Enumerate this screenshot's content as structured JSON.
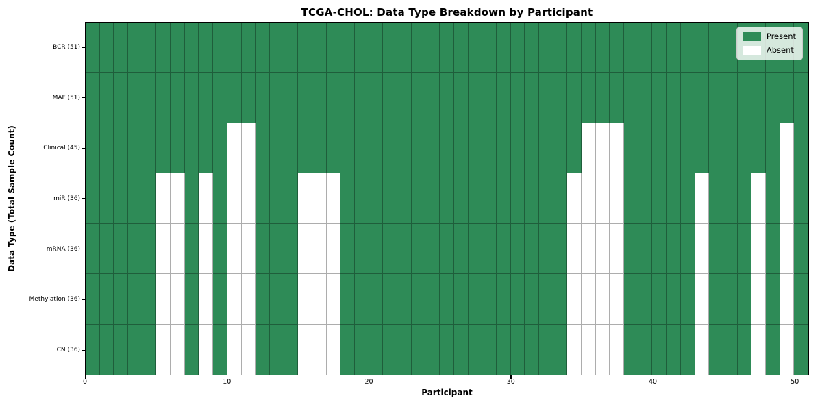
{
  "chart_data": {
    "type": "heatmap",
    "title": "TCGA-CHOL: Data Type Breakdown by Participant",
    "xlabel": "Participant",
    "ylabel": "Data Type (Total Sample Count)",
    "x_ticks": [
      0,
      10,
      20,
      30,
      40,
      50
    ],
    "xlim": [
      0,
      51
    ],
    "n_participants": 51,
    "grid": true,
    "legend_position": "upper right",
    "legend": [
      {
        "label": "Present",
        "color": "#2e8b57"
      },
      {
        "label": "Absent",
        "color": "#ffffff"
      }
    ],
    "rows": [
      {
        "label": "BCR (51)",
        "data_type": "BCR",
        "total": 51,
        "absent_participants": []
      },
      {
        "label": "MAF (51)",
        "data_type": "MAF",
        "total": 51,
        "absent_participants": []
      },
      {
        "label": "Clinical (45)",
        "data_type": "Clinical",
        "total": 45,
        "absent_participants": [
          10,
          11,
          35,
          36,
          37,
          49
        ]
      },
      {
        "label": "miR (36)",
        "data_type": "miR",
        "total": 36,
        "absent_participants": [
          5,
          6,
          8,
          10,
          11,
          15,
          16,
          17,
          34,
          35,
          36,
          37,
          43,
          47,
          49
        ]
      },
      {
        "label": "mRNA (36)",
        "data_type": "mRNA",
        "total": 36,
        "absent_participants": [
          5,
          6,
          8,
          10,
          11,
          15,
          16,
          17,
          34,
          35,
          36,
          37,
          43,
          47,
          49
        ]
      },
      {
        "label": "Methylation (36)",
        "data_type": "Methylation",
        "total": 36,
        "absent_participants": [
          5,
          6,
          8,
          10,
          11,
          15,
          16,
          17,
          34,
          35,
          36,
          37,
          43,
          47,
          49
        ]
      },
      {
        "label": "CN (36)",
        "data_type": "CN",
        "total": 36,
        "absent_participants": [
          5,
          6,
          8,
          10,
          11,
          15,
          16,
          17,
          34,
          35,
          36,
          37,
          43,
          47,
          49
        ]
      }
    ],
    "colors": {
      "present": "#2e8b57",
      "absent": "#ffffff",
      "gridline": "rgba(0,0,0,0.32)",
      "axis_border": "#000000",
      "legend_background": "rgba(255,255,255,0.8)",
      "legend_border": "#cccccc"
    }
  }
}
